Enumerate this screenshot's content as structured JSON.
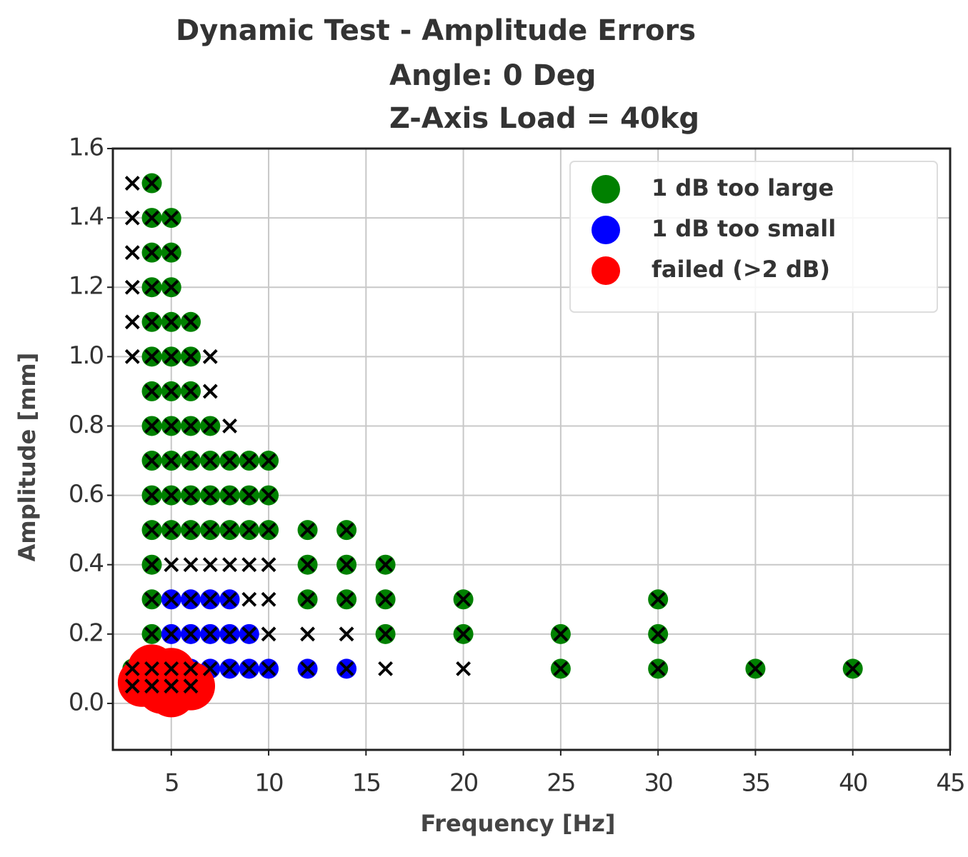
{
  "chart_data": {
    "type": "scatter",
    "title": "Dynamic Test - Amplitude Errors",
    "subtitle": [
      "Angle: 0 Deg",
      "Z-Axis Load = 40kg"
    ],
    "x_label": "Frequency [Hz]",
    "y_label": "Amplitude [mm]",
    "xlim": [
      2,
      45
    ],
    "ylim": [
      -0.134,
      1.6
    ],
    "xticks": [
      5,
      10,
      15,
      20,
      25,
      30,
      35,
      40,
      45
    ],
    "yticks": [
      {
        "value": 0,
        "label": "0.0"
      },
      0.2,
      0.4,
      0.6,
      0.8,
      {
        "value": 1,
        "label": "1.0"
      },
      1.2,
      1.4,
      1.6
    ],
    "grid": true,
    "legend": "upper right",
    "series": [
      {
        "name": "1 dB too large",
        "color": "#008000",
        "marker": "o",
        "x": [
          4,
          4,
          5,
          4,
          5,
          4,
          5,
          4,
          5,
          6,
          4,
          5,
          6,
          4,
          5,
          6,
          4,
          5,
          6,
          7,
          4,
          5,
          6,
          7,
          8,
          9,
          10,
          4,
          5,
          6,
          7,
          8,
          9,
          10,
          4,
          5,
          6,
          7,
          8,
          9,
          10,
          12,
          14,
          4,
          12,
          14,
          16,
          4,
          12,
          14,
          16,
          20,
          30,
          4,
          16,
          20,
          25,
          30,
          3,
          25,
          30,
          35,
          40
        ],
        "y": [
          1.5,
          1.4,
          1.4,
          1.3,
          1.3,
          1.2,
          1.2,
          1.1,
          1.1,
          1.1,
          1.0,
          1.0,
          1.0,
          0.9,
          0.9,
          0.9,
          0.8,
          0.8,
          0.8,
          0.8,
          0.7,
          0.7,
          0.7,
          0.7,
          0.7,
          0.7,
          0.7,
          0.6,
          0.6,
          0.6,
          0.6,
          0.6,
          0.6,
          0.6,
          0.5,
          0.5,
          0.5,
          0.5,
          0.5,
          0.5,
          0.5,
          0.5,
          0.5,
          0.4,
          0.4,
          0.4,
          0.4,
          0.3,
          0.3,
          0.3,
          0.3,
          0.3,
          0.3,
          0.2,
          0.2,
          0.2,
          0.2,
          0.2,
          0.1,
          0.1,
          0.1,
          0.1,
          0.1
        ]
      },
      {
        "name": "1 dB too small",
        "color": "#0000ff",
        "marker": "o",
        "x": [
          5,
          6,
          7,
          8,
          5,
          6,
          7,
          8,
          9,
          5,
          6,
          7,
          8,
          9,
          10,
          12,
          14
        ],
        "y": [
          0.3,
          0.3,
          0.3,
          0.3,
          0.2,
          0.2,
          0.2,
          0.2,
          0.2,
          0.1,
          0.1,
          0.1,
          0.1,
          0.1,
          0.1,
          0.1,
          0.1
        ]
      },
      {
        "name": "failed (>2 dB)",
        "color": "#ff0000",
        "marker": "o",
        "x": [
          3.5,
          4.5,
          5,
          6,
          5,
          4
        ],
        "y": [
          0.06,
          0.04,
          0.03,
          0.05,
          0.09,
          0.1
        ]
      },
      {
        "color": "#000000",
        "marker": "x",
        "x": [
          3,
          4,
          3,
          4,
          5,
          3,
          4,
          5,
          3,
          4,
          5,
          3,
          4,
          5,
          6,
          3,
          4,
          5,
          6,
          7,
          4,
          5,
          6,
          7,
          4,
          5,
          6,
          7,
          8,
          4,
          5,
          6,
          7,
          8,
          9,
          10,
          4,
          5,
          6,
          7,
          8,
          9,
          10,
          4,
          5,
          6,
          7,
          8,
          9,
          10,
          12,
          14,
          4,
          5,
          6,
          7,
          8,
          9,
          10,
          12,
          14,
          16,
          4,
          5,
          6,
          7,
          8,
          9,
          10,
          12,
          14,
          16,
          20,
          30,
          4,
          5,
          6,
          7,
          8,
          9,
          10,
          12,
          14,
          16,
          20,
          25,
          30,
          3,
          4,
          5,
          6,
          7,
          8,
          9,
          10,
          12,
          14,
          16,
          20,
          25,
          30,
          35,
          40,
          3,
          4,
          5,
          6
        ],
        "y": [
          1.5,
          1.5,
          1.4,
          1.4,
          1.4,
          1.3,
          1.3,
          1.3,
          1.2,
          1.2,
          1.2,
          1.1,
          1.1,
          1.1,
          1.1,
          1.0,
          1.0,
          1.0,
          1.0,
          1.0,
          0.9,
          0.9,
          0.9,
          0.9,
          0.8,
          0.8,
          0.8,
          0.8,
          0.8,
          0.7,
          0.7,
          0.7,
          0.7,
          0.7,
          0.7,
          0.7,
          0.6,
          0.6,
          0.6,
          0.6,
          0.6,
          0.6,
          0.6,
          0.5,
          0.5,
          0.5,
          0.5,
          0.5,
          0.5,
          0.5,
          0.5,
          0.5,
          0.4,
          0.4,
          0.4,
          0.4,
          0.4,
          0.4,
          0.4,
          0.4,
          0.4,
          0.4,
          0.3,
          0.3,
          0.3,
          0.3,
          0.3,
          0.3,
          0.3,
          0.3,
          0.3,
          0.3,
          0.3,
          0.3,
          0.2,
          0.2,
          0.2,
          0.2,
          0.2,
          0.2,
          0.2,
          0.2,
          0.2,
          0.2,
          0.2,
          0.2,
          0.2,
          0.1,
          0.1,
          0.1,
          0.1,
          0.1,
          0.1,
          0.1,
          0.1,
          0.1,
          0.1,
          0.1,
          0.1,
          0.1,
          0.1,
          0.1,
          0.1,
          0.05,
          0.05,
          0.05,
          0.05
        ]
      }
    ]
  }
}
